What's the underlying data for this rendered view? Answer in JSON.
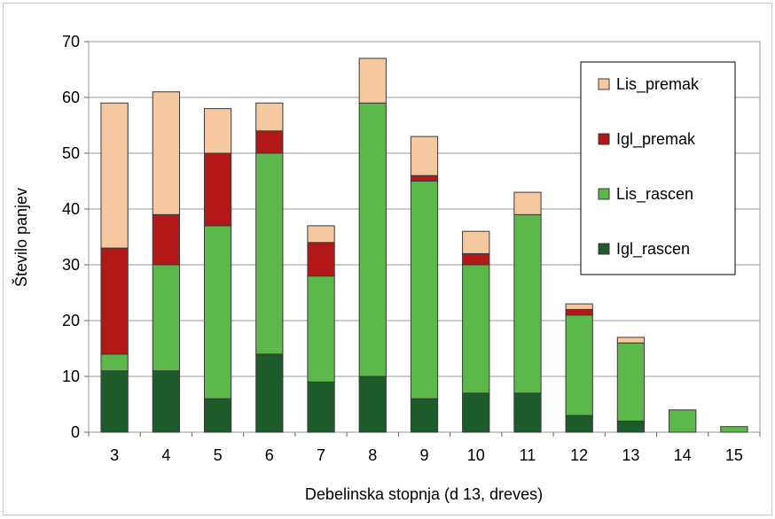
{
  "chart_data": {
    "type": "bar",
    "stacked": true,
    "title": "",
    "xlabel": "Debelinska stopnja (d 13, dreves)",
    "ylabel": "Število panjev",
    "ylim": [
      0,
      70
    ],
    "yticks": [
      0,
      10,
      20,
      30,
      40,
      50,
      60,
      70
    ],
    "grid": true,
    "legend_position": "right",
    "categories": [
      "3",
      "4",
      "5",
      "6",
      "7",
      "8",
      "9",
      "10",
      "11",
      "12",
      "13",
      "14",
      "15"
    ],
    "series": [
      {
        "name": "Igl_rascen",
        "color": "#1e5b2a",
        "values": [
          11,
          11,
          6,
          14,
          9,
          10,
          6,
          7,
          7,
          3,
          2,
          0,
          0
        ]
      },
      {
        "name": "Lis_rascen",
        "color": "#5cb84a",
        "values": [
          3,
          19,
          31,
          36,
          19,
          49,
          39,
          23,
          32,
          18,
          14,
          4,
          1
        ]
      },
      {
        "name": "Igl_premak",
        "color": "#b31818",
        "values": [
          19,
          9,
          13,
          4,
          6,
          0,
          1,
          2,
          0,
          1,
          0,
          0,
          0
        ]
      },
      {
        "name": "Lis_premak",
        "color": "#f6c8a0",
        "values": [
          26,
          22,
          8,
          5,
          3,
          8,
          7,
          4,
          4,
          1,
          1,
          0,
          0
        ]
      }
    ],
    "legend_order": [
      "Lis_premak",
      "Igl_premak",
      "Lis_rascen",
      "Igl_rascen"
    ]
  }
}
